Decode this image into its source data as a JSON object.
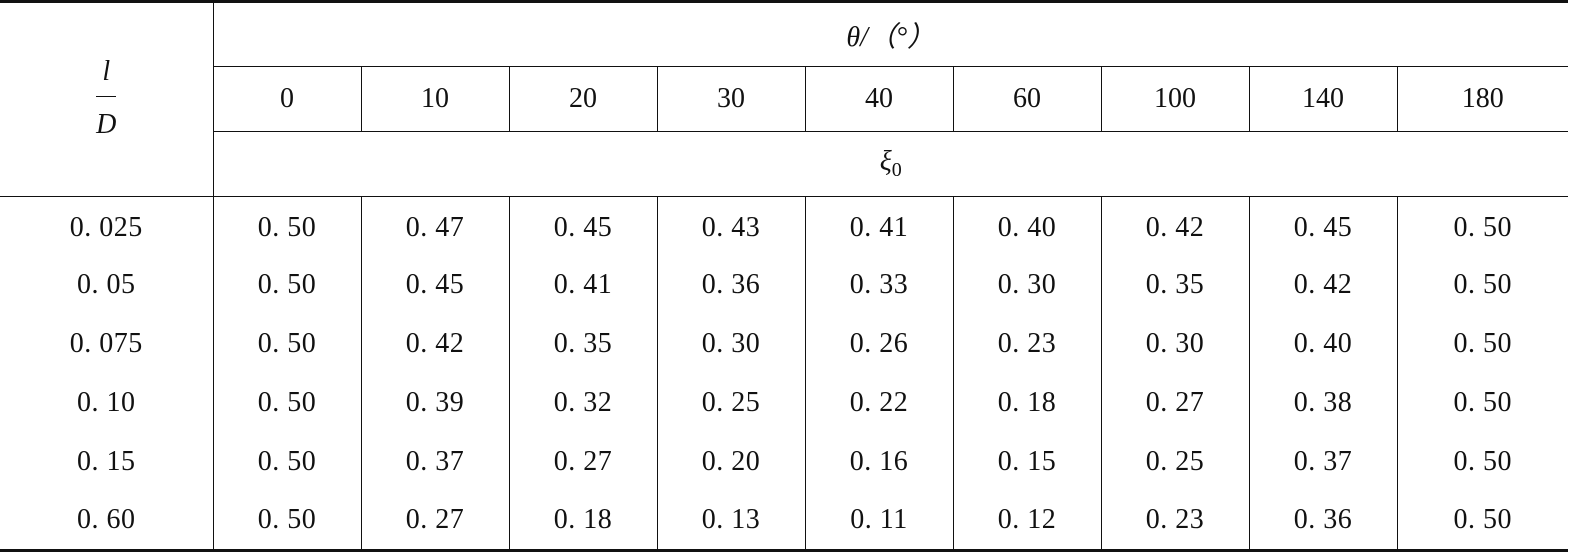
{
  "table": {
    "corner": {
      "numerator": "l",
      "denominator": "D"
    },
    "theta_header": "θ/（°）",
    "angles": [
      "0",
      "10",
      "20",
      "30",
      "40",
      "60",
      "100",
      "140",
      "180"
    ],
    "xi_symbol": "ξ",
    "xi_subscript": "0",
    "rows": [
      {
        "ratio": "0. 025",
        "values": [
          "0. 50",
          "0. 47",
          "0. 45",
          "0. 43",
          "0. 41",
          "0. 40",
          "0. 42",
          "0. 45",
          "0. 50"
        ]
      },
      {
        "ratio": "0. 05",
        "values": [
          "0. 50",
          "0. 45",
          "0. 41",
          "0. 36",
          "0. 33",
          "0. 30",
          "0. 35",
          "0. 42",
          "0. 50"
        ]
      },
      {
        "ratio": "0. 075",
        "values": [
          "0. 50",
          "0. 42",
          "0. 35",
          "0. 30",
          "0. 26",
          "0. 23",
          "0. 30",
          "0. 40",
          "0. 50"
        ]
      },
      {
        "ratio": "0. 10",
        "values": [
          "0. 50",
          "0. 39",
          "0. 32",
          "0. 25",
          "0. 22",
          "0. 18",
          "0. 27",
          "0. 38",
          "0. 50"
        ]
      },
      {
        "ratio": "0. 15",
        "values": [
          "0. 50",
          "0. 37",
          "0. 27",
          "0. 20",
          "0. 16",
          "0. 15",
          "0. 25",
          "0. 37",
          "0. 50"
        ]
      },
      {
        "ratio": "0. 60",
        "values": [
          "0. 50",
          "0. 27",
          "0. 18",
          "0. 13",
          "0. 11",
          "0. 12",
          "0. 23",
          "0. 36",
          "0. 50"
        ]
      }
    ]
  }
}
